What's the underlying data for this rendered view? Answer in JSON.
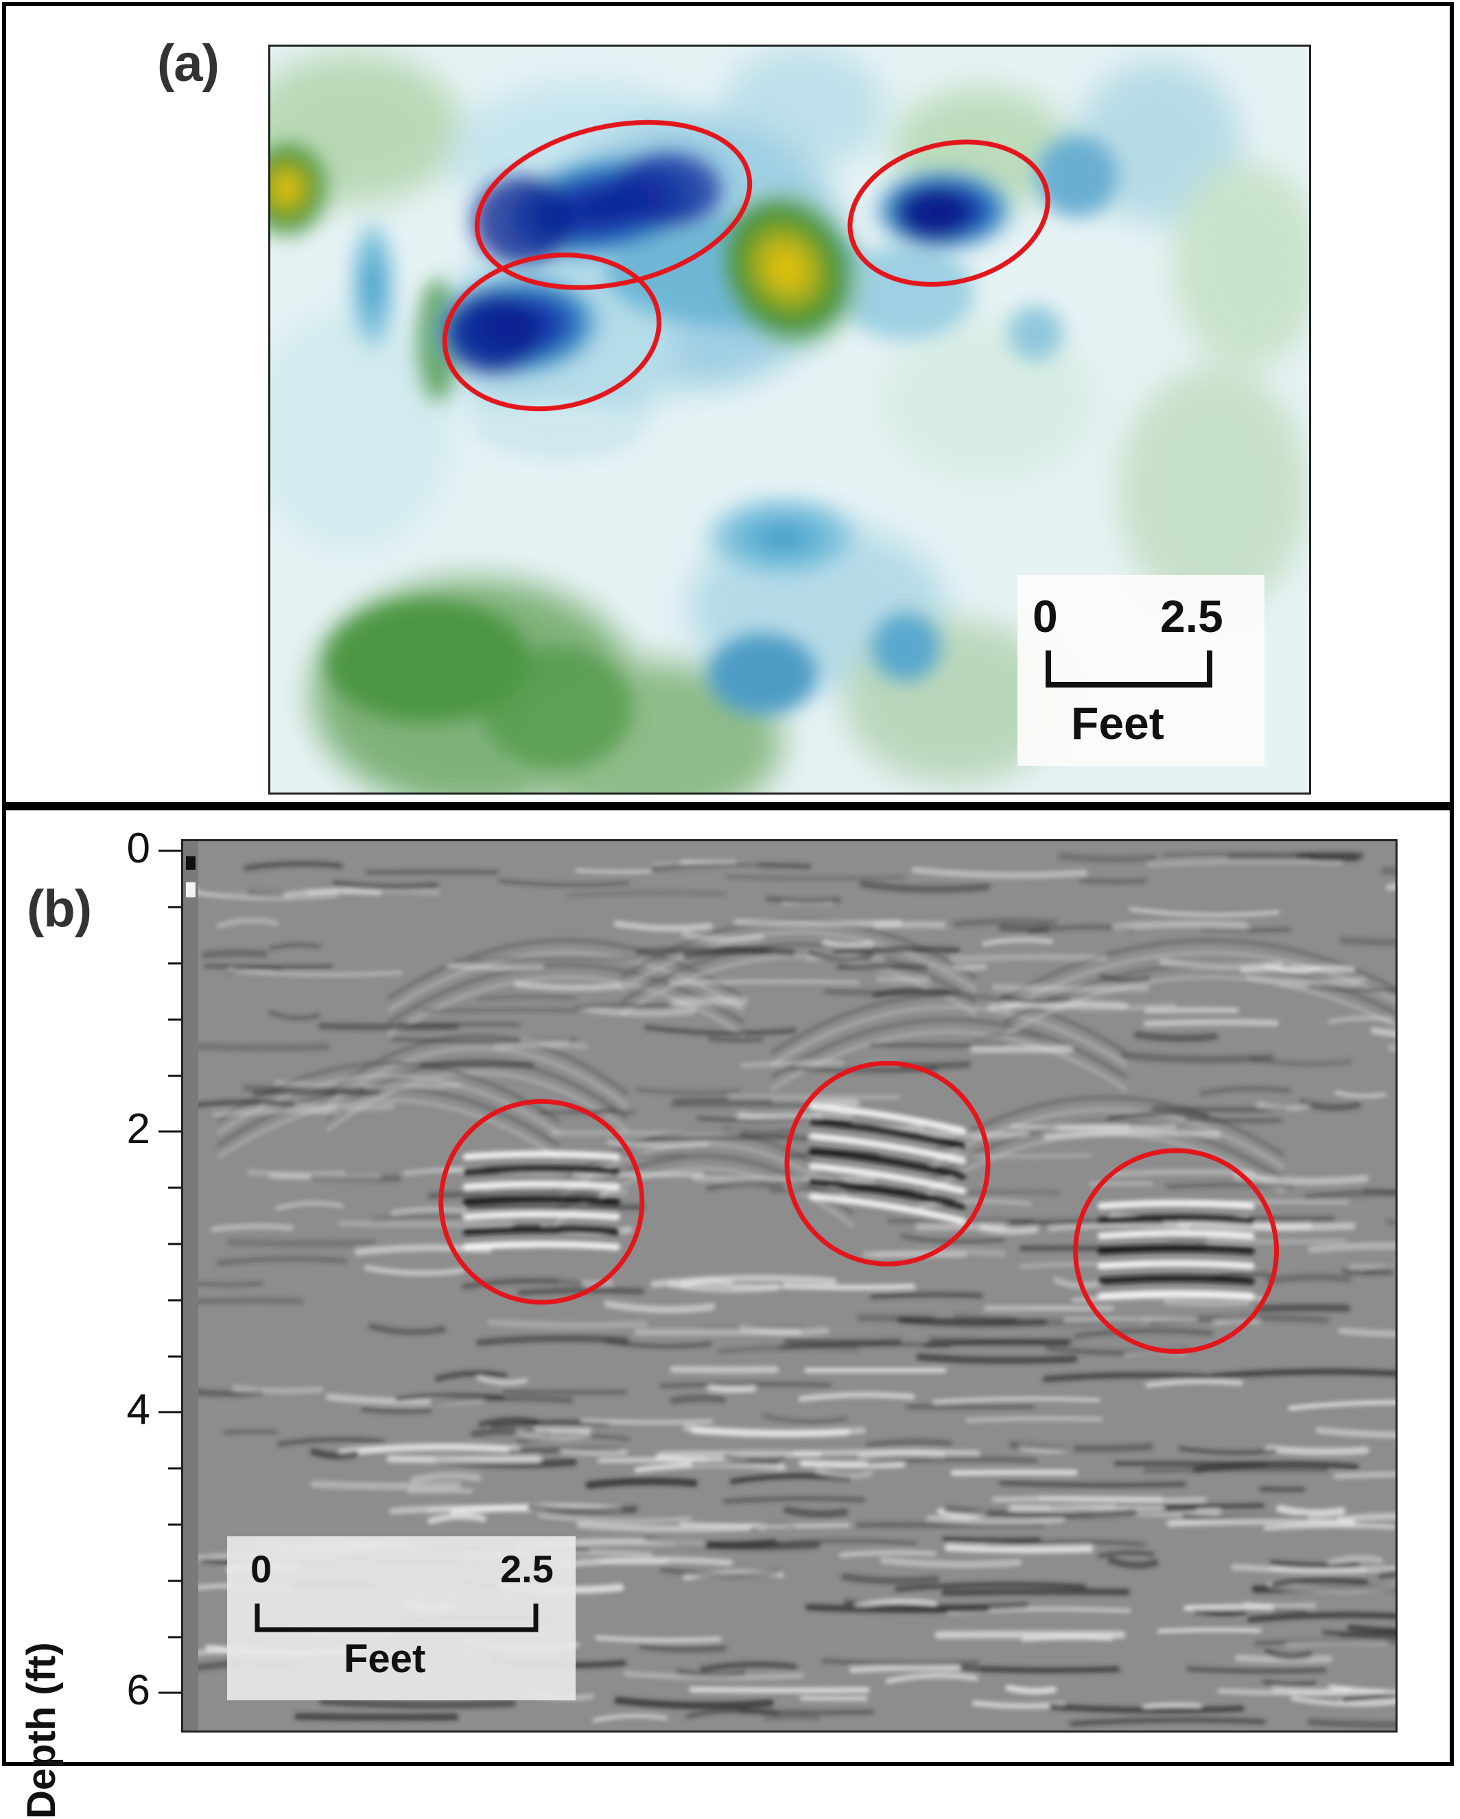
{
  "panel_a": {
    "label": "(a)",
    "scale_bar": {
      "start": "0",
      "end": "2.5",
      "unit": "Feet"
    },
    "highlight_color": "#e3161c",
    "colormap": [
      "#0b2a9e",
      "#2f86c2",
      "#bfe3ee",
      "#ffffff",
      "#9fc79a",
      "#3f8f35",
      "#f5b800"
    ]
  },
  "panel_b": {
    "label": "(b)",
    "axis_title": "Depth (ft)",
    "y_ticks": [
      "0",
      "2",
      "4",
      "6"
    ],
    "y_range": [
      0,
      6.3
    ],
    "scale_bar": {
      "start": "0",
      "end": "2.5",
      "unit": "Feet"
    },
    "highlight_color": "#e3161c"
  }
}
